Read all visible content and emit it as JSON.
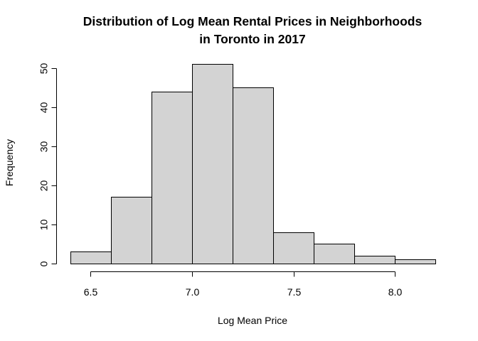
{
  "chart_data": {
    "type": "bar",
    "title": "Distribution of Log Mean Rental Prices in Neighborhoods in Toronto in 2017",
    "title_lines": [
      "Distribution of Log Mean Rental Prices in Neighborhoods",
      "in Toronto in 2017"
    ],
    "xlabel": "Log Mean Price",
    "ylabel": "Frequency",
    "bin_edges": [
      6.4,
      6.6,
      6.8,
      7.0,
      7.2,
      7.4,
      7.6,
      7.8,
      8.0,
      8.2
    ],
    "values": [
      3,
      17,
      44,
      51,
      45,
      8,
      5,
      2,
      1
    ],
    "x_ticks": [
      6.5,
      7.0,
      7.5,
      8.0
    ],
    "x_tick_labels": [
      "6.5",
      "7.0",
      "7.5",
      "8.0"
    ],
    "y_ticks": [
      0,
      10,
      20,
      30,
      40,
      50
    ],
    "y_tick_labels": [
      "0",
      "10",
      "20",
      "30",
      "40",
      "50"
    ],
    "xlim": [
      6.4,
      8.2
    ],
    "ylim": [
      0,
      51
    ],
    "grid": false,
    "bar_color": "#d3d3d3",
    "edge_color": "#000000"
  }
}
